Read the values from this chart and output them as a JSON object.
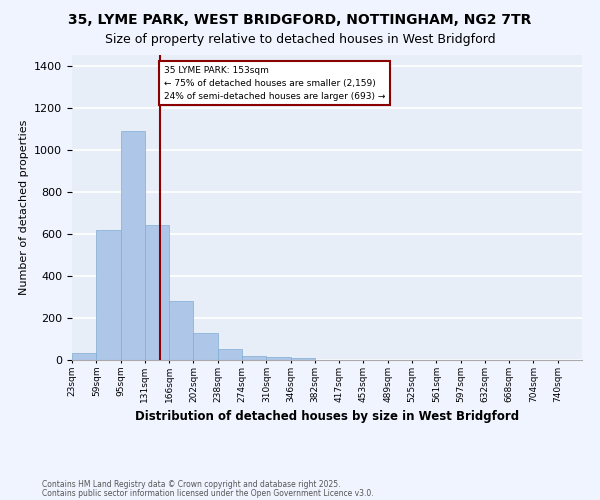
{
  "title1": "35, LYME PARK, WEST BRIDGFORD, NOTTINGHAM, NG2 7TR",
  "title2": "Size of property relative to detached houses in West Bridgford",
  "xlabel": "Distribution of detached houses by size in West Bridgford",
  "ylabel": "Number of detached properties",
  "bin_labels": [
    "23sqm",
    "59sqm",
    "95sqm",
    "131sqm",
    "166sqm",
    "202sqm",
    "238sqm",
    "274sqm",
    "310sqm",
    "346sqm",
    "382sqm",
    "417sqm",
    "453sqm",
    "489sqm",
    "525sqm",
    "561sqm",
    "597sqm",
    "632sqm",
    "668sqm",
    "704sqm",
    "740sqm"
  ],
  "bar_values": [
    35,
    620,
    1090,
    640,
    280,
    130,
    50,
    20,
    15,
    10,
    0,
    0,
    0,
    0,
    0,
    0,
    0,
    0,
    0,
    0,
    0
  ],
  "bar_color": "#aec6e8",
  "bar_edge_color": "#7fadd4",
  "background_color": "#e8eef8",
  "grid_color": "#ffffff",
  "vline_color": "#8b0000",
  "annotation_text": "35 LYME PARK: 153sqm\n← 75% of detached houses are smaller (2,159)\n24% of semi-detached houses are larger (693) →",
  "annotation_box_color": "#8b0000",
  "ylim": [
    0,
    1450
  ],
  "yticks": [
    0,
    200,
    400,
    600,
    800,
    1000,
    1200,
    1400
  ],
  "footnote1": "Contains HM Land Registry data © Crown copyright and database right 2025.",
  "footnote2": "Contains public sector information licensed under the Open Government Licence v3.0."
}
